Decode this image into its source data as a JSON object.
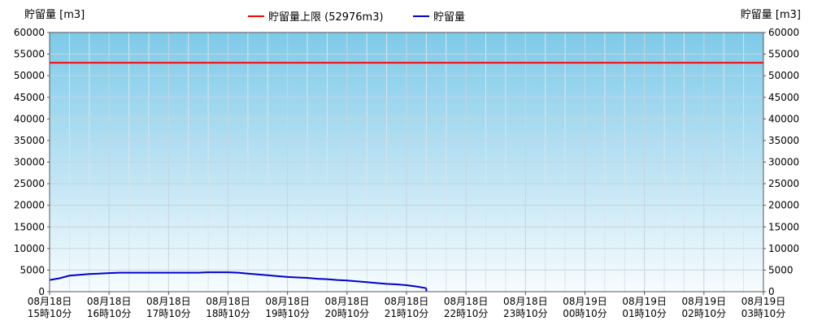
{
  "chart_data": {
    "type": "line",
    "ylabel_left": "貯留量 [m3]",
    "ylabel_right": "貯留量 [m3]",
    "ylim": [
      0,
      60000
    ],
    "y_ticks": [
      0,
      5000,
      10000,
      15000,
      20000,
      25000,
      30000,
      35000,
      40000,
      45000,
      50000,
      55000,
      60000
    ],
    "x_tick_labels": [
      [
        "08月18日",
        "15時10分"
      ],
      [
        "08月18日",
        "16時10分"
      ],
      [
        "08月18日",
        "17時10分"
      ],
      [
        "08月18日",
        "18時10分"
      ],
      [
        "08月18日",
        "19時10分"
      ],
      [
        "08月18日",
        "20時10分"
      ],
      [
        "08月18日",
        "21時10分"
      ],
      [
        "08月18日",
        "22時10分"
      ],
      [
        "08月18日",
        "23時10分"
      ],
      [
        "08月19日",
        "00時10分"
      ],
      [
        "08月19日",
        "01時10分"
      ],
      [
        "08月19日",
        "02時10分"
      ],
      [
        "08月19日",
        "03時10分"
      ]
    ],
    "x_unit": "minutes from 08月18日 15時10分 (10-minute steps)",
    "xlim": [
      0,
      720
    ],
    "grid": true,
    "legend_position": "top-center",
    "series": [
      {
        "name": "貯留量上限 (52976m3)",
        "color": "#ff0000",
        "x": [
          0,
          720
        ],
        "values": [
          52976,
          52976
        ]
      },
      {
        "name": "貯留量",
        "color": "#0000cc",
        "x": [
          0,
          10,
          20,
          30,
          40,
          50,
          60,
          70,
          80,
          90,
          100,
          110,
          120,
          130,
          140,
          150,
          160,
          170,
          180,
          190,
          200,
          210,
          220,
          230,
          240,
          250,
          260,
          270,
          280,
          290,
          300,
          310,
          320,
          330,
          340,
          350,
          360,
          370,
          380
        ],
        "values": [
          2700,
          3100,
          3700,
          3900,
          4100,
          4200,
          4300,
          4400,
          4400,
          4400,
          4400,
          4400,
          4400,
          4400,
          4400,
          4400,
          4500,
          4500,
          4500,
          4400,
          4200,
          4000,
          3800,
          3600,
          3400,
          3300,
          3200,
          3000,
          2900,
          2700,
          2600,
          2400,
          2200,
          2000,
          1800,
          1700,
          1500,
          1200,
          800
        ]
      }
    ]
  }
}
